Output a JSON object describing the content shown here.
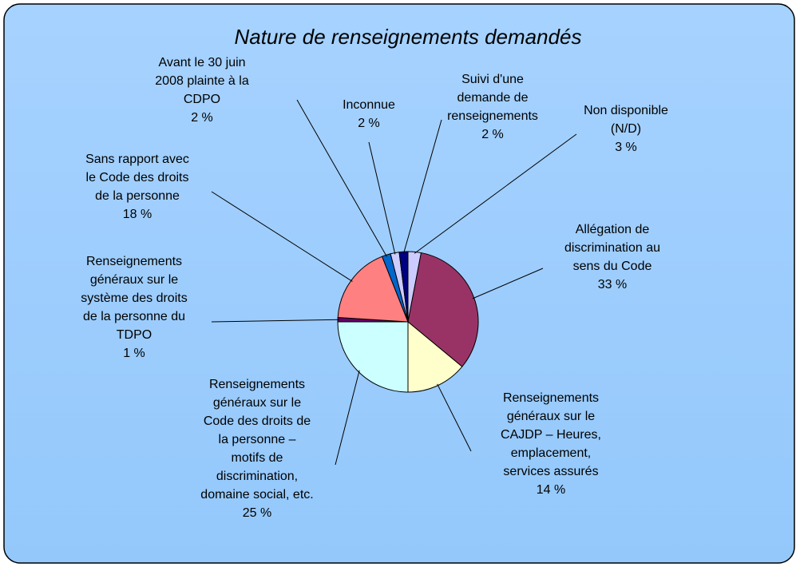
{
  "chart_data": {
    "type": "pie",
    "title": "Nature de renseignements demandés",
    "categories": [
      "Non disponible\n(N/D)",
      "Allégation de\ndiscrimination au\nsens du Code",
      "Renseignements\ngénéraux sur le\nCAJDP – Heures,\nemplacement,\nservices assurés",
      "Renseignements\ngénéraux sur le\nCode des droits de\nla personne –\nmotifs de\ndiscrimination,\ndomaine social, etc.",
      "Renseignements\ngénéraux sur le\nsystème des droits\nde la personne du\nTDPO",
      "Sans rapport avec\nle Code des droits\nde la personne",
      "Avant le 30 juin\n2008 plainte à la\nCDPO",
      "Inconnue",
      "Suivi d'une\ndemande de\nrenseignements"
    ],
    "values": [
      3,
      33,
      14,
      25,
      1,
      18,
      2,
      2,
      2
    ],
    "value_labels": [
      "3 %",
      "33 %",
      "14 %",
      "25 %",
      "1 %",
      "18 %",
      "2 %",
      "2 %",
      "2 %"
    ],
    "colors": [
      "#ccccff",
      "#993366",
      "#ffffcc",
      "#ccffff",
      "#660066",
      "#ff8080",
      "#0066cc",
      "#ccccff",
      "#000080"
    ]
  }
}
